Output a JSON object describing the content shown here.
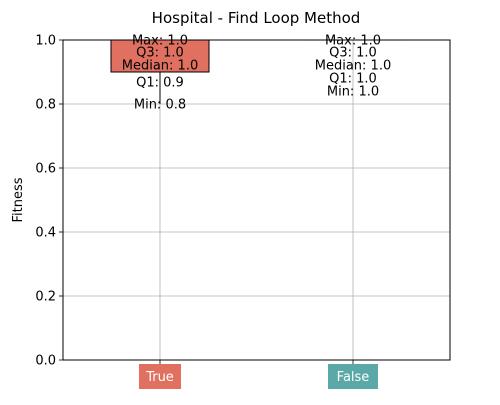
{
  "chart_data": {
    "type": "box",
    "title": "Hospital - Find Loop Method",
    "xlabel": "",
    "ylabel": "Fitness",
    "ylim": [
      0,
      1
    ],
    "yticks": [
      "0.0",
      "0.2",
      "0.4",
      "0.6",
      "0.8",
      "1.0"
    ],
    "grid": true,
    "categories": [
      {
        "name": "True",
        "color": "#e07060",
        "min": 0.8,
        "q1": 0.9,
        "median": 1.0,
        "q3": 1.0,
        "max": 1.0,
        "labels": [
          "Max: 1.0",
          "Q3: 1.0",
          "Median: 1.0",
          "Q1: 0.9",
          "Min: 0.8"
        ]
      },
      {
        "name": "False",
        "color": "#5ba8a8",
        "min": 1.0,
        "q1": 1.0,
        "median": 1.0,
        "q3": 1.0,
        "max": 1.0,
        "labels": [
          "Max: 1.0",
          "Q3: 1.0",
          "Median: 1.0",
          "Q1: 1.0",
          "Min: 1.0"
        ]
      }
    ]
  }
}
